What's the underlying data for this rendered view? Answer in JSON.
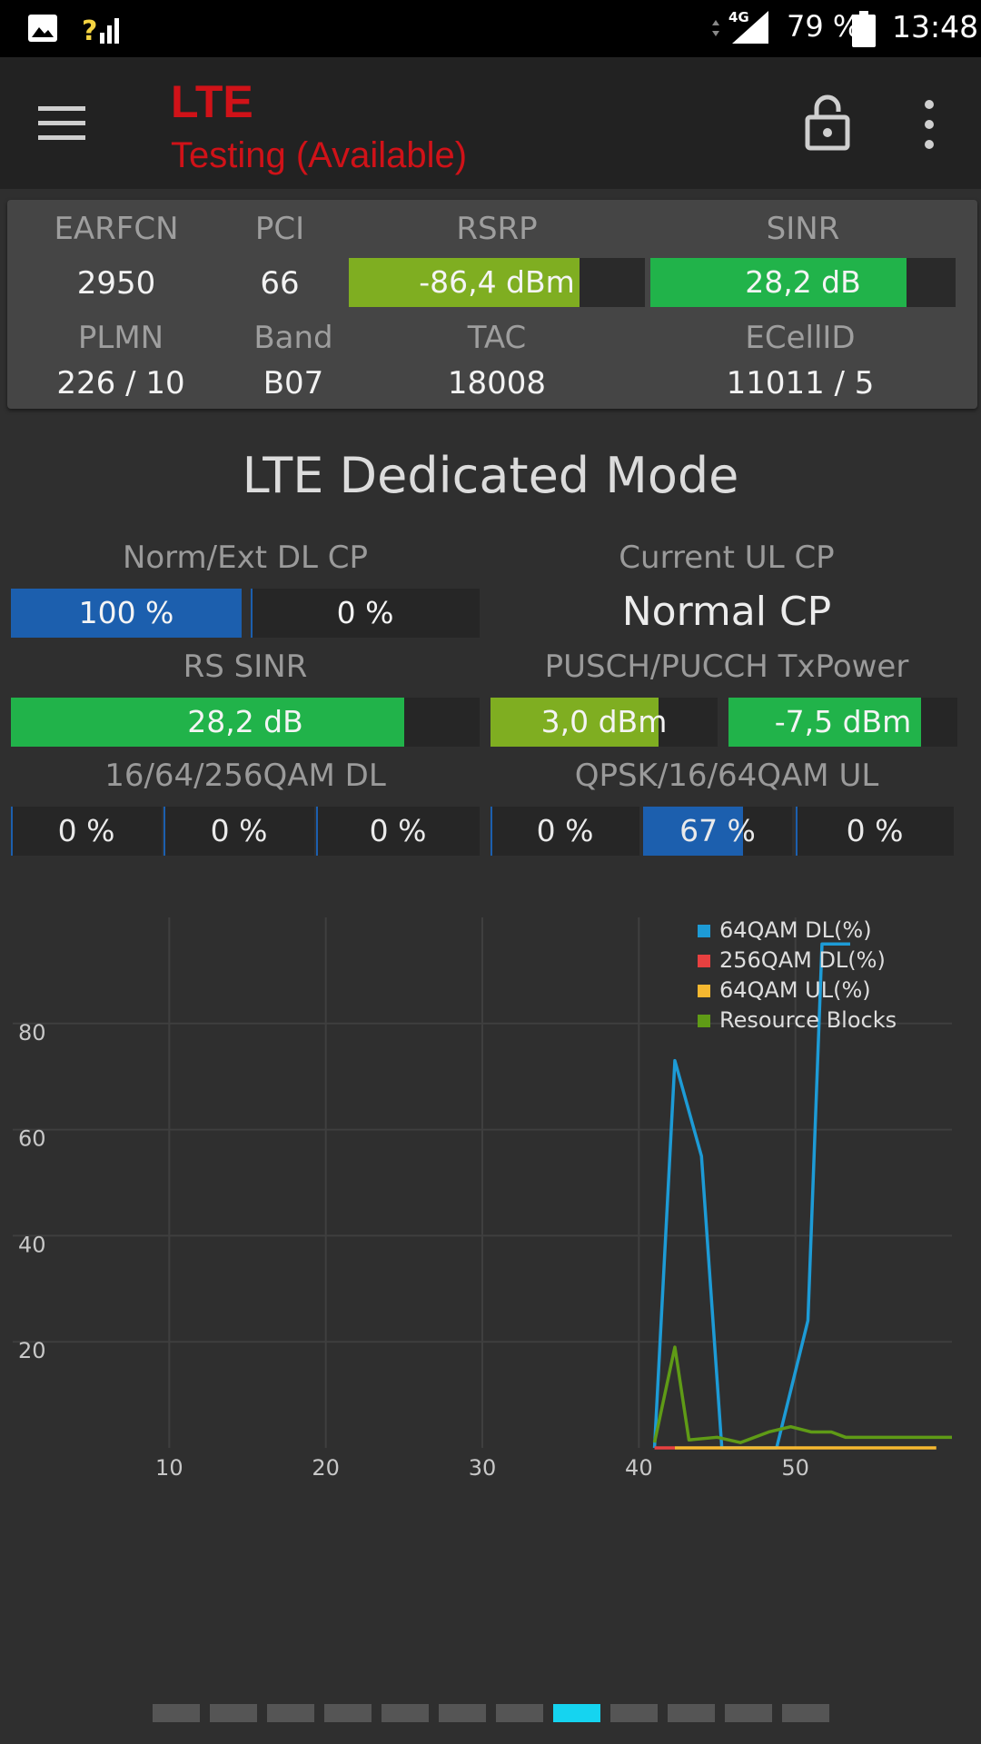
{
  "status_bar": {
    "network": "4G",
    "battery": "79 %",
    "time": "13:48"
  },
  "app_bar": {
    "title": "LTE",
    "subtitle": "Testing (Available)"
  },
  "info": {
    "earfcn_label": "EARFCN",
    "earfcn": "2950",
    "pci_label": "PCI",
    "pci": "66",
    "rsrp_label": "RSRP",
    "rsrp": "-86,4 dBm",
    "rsrp_level": 0.78,
    "sinr_label": "SINR",
    "sinr": "28,2 dB",
    "sinr_level": 0.84,
    "plmn_label": "PLMN",
    "plmn": "226 / 10",
    "band_label": "Band",
    "band": "B07",
    "tac_label": "TAC",
    "tac": "18008",
    "ecellid_label": "ECellID",
    "ecellid": "11011 / 5",
    "rsrp_color": "#7fae21",
    "sinr_color": "#21b34a"
  },
  "section": {
    "title": "LTE Dedicated Mode",
    "dl_cp_label": "Norm/Ext DL CP",
    "dl_cp_norm": "100 %",
    "dl_cp_norm_level": 1.0,
    "dl_cp_ext": "0 %",
    "dl_cp_ext_level": 0.0,
    "ul_cp_label": "Current UL CP",
    "ul_cp": "Normal CP",
    "rs_sinr_label": "RS SINR",
    "rs_sinr": "28,2 dB",
    "rs_sinr_level": 0.84,
    "txpower_label": "PUSCH/PUCCH TxPower",
    "pusch": "3,0 dBm",
    "pusch_level": 0.74,
    "pucch": "-7,5 dBm",
    "pucch_level": 0.84,
    "dl_qam_label": "16/64/256QAM DL",
    "dl_qam": [
      {
        "text": "0 %",
        "level": 0.0
      },
      {
        "text": "0 %",
        "level": 0.0
      },
      {
        "text": "0 %",
        "level": 0.0
      }
    ],
    "ul_qam_label": "QPSK/16/64QAM UL",
    "ul_qam": [
      {
        "text": "0 %",
        "level": 0.0
      },
      {
        "text": "67 %",
        "level": 0.67
      },
      {
        "text": "0 %",
        "level": 0.0
      }
    ],
    "blue_color": "#1c5fae"
  },
  "chart_data": {
    "type": "line",
    "x_ticks": [
      "10",
      "20",
      "30",
      "40",
      "50"
    ],
    "y_ticks": [
      "20",
      "40",
      "60",
      "80"
    ],
    "xlim": [
      0,
      60
    ],
    "ylim": [
      0,
      100
    ],
    "grid": true,
    "legend_position": "top-right",
    "series": [
      {
        "name": "64QAM DL(%)",
        "color": "#1d9bd6",
        "x": [
          41,
          42.3,
          44,
          45.3,
          48.8,
          50.8,
          51.7,
          52.7,
          53.5
        ],
        "y": [
          0,
          73,
          55,
          0,
          0,
          24,
          95,
          95,
          95
        ]
      },
      {
        "name": "256QAM DL(%)",
        "color": "#e84040",
        "x": [
          41,
          42.3
        ],
        "y": [
          0,
          0
        ]
      },
      {
        "name": "64QAM UL(%)",
        "color": "#f5b830",
        "x": [
          42.3,
          59
        ],
        "y": [
          0,
          0
        ]
      },
      {
        "name": "Resource Blocks",
        "color": "#5f9b16",
        "x": [
          41,
          42.3,
          43.2,
          45,
          46.5,
          48.3,
          49.7,
          51,
          52.3,
          53.2,
          60
        ],
        "y": [
          1,
          19,
          1.5,
          2,
          1,
          3,
          4,
          3,
          3,
          2,
          2
        ]
      }
    ]
  },
  "pager": {
    "count": 12,
    "active": 7,
    "active_color": "#15d4f0"
  }
}
